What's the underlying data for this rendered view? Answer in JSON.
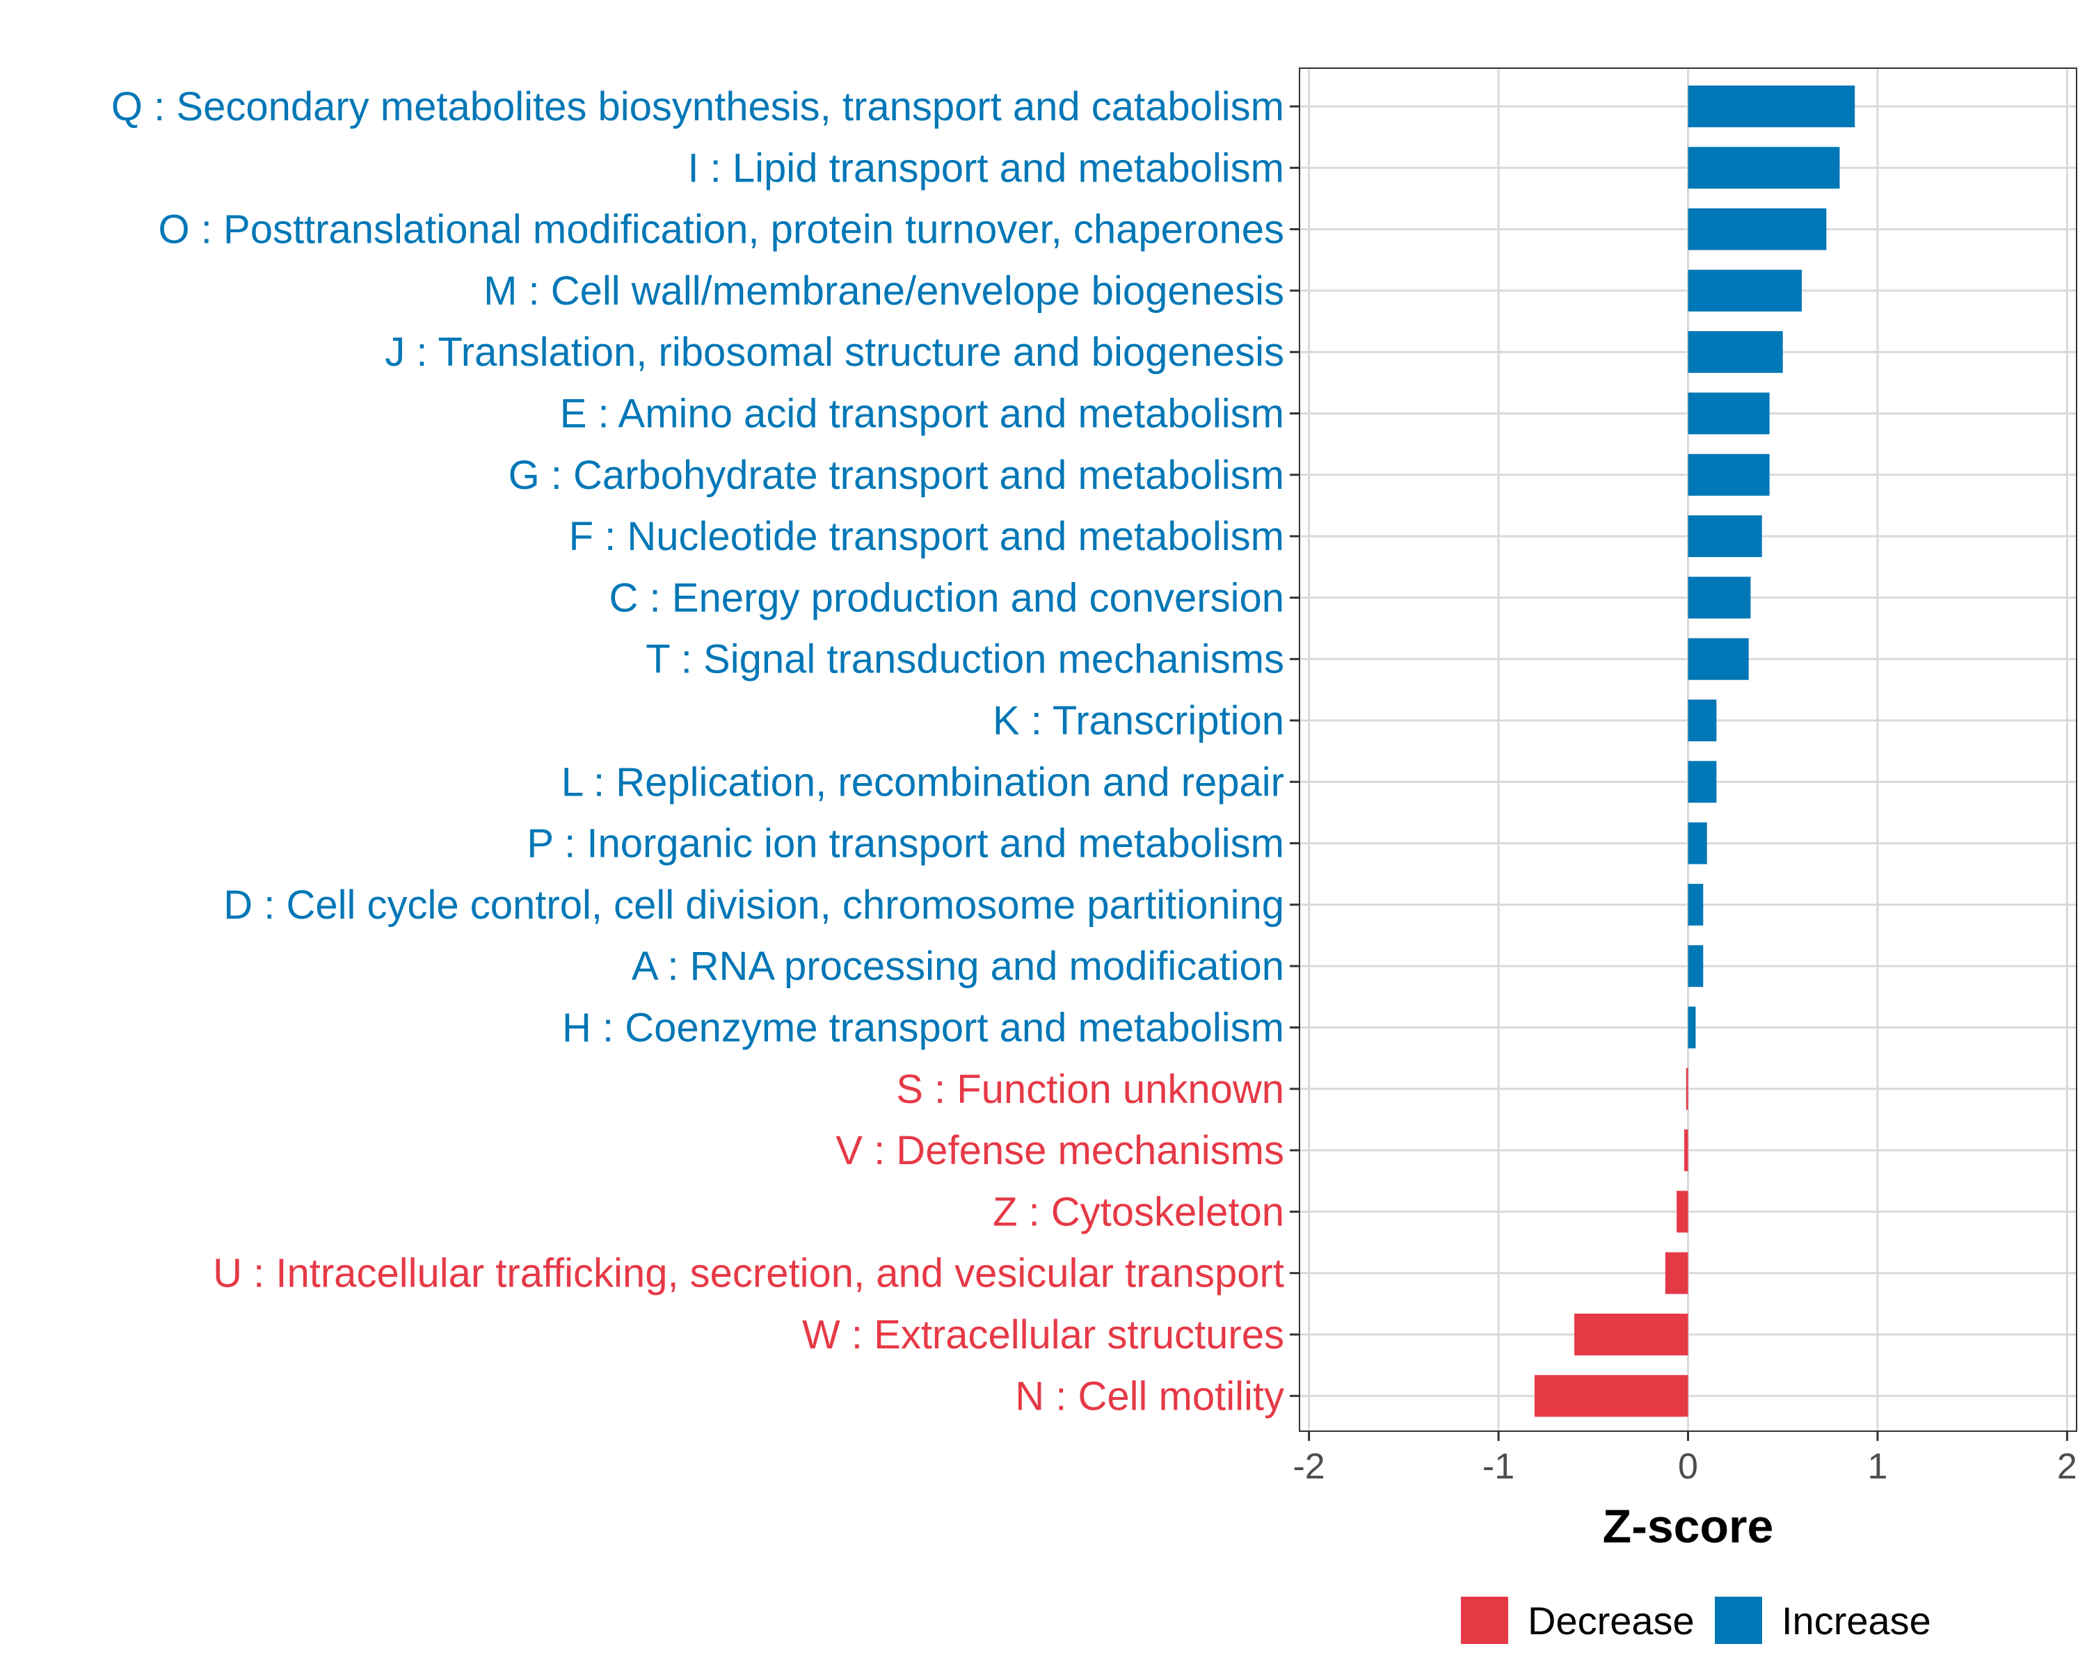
{
  "chart_data": {
    "type": "bar",
    "orientation": "horizontal",
    "categories": [
      "Q : Secondary metabolites biosynthesis, transport and catabolism",
      "I : Lipid transport and metabolism",
      "O : Posttranslational modification, protein turnover, chaperones",
      "M : Cell wall/membrane/envelope biogenesis",
      "J : Translation, ribosomal structure and biogenesis",
      "E : Amino acid transport and metabolism",
      "G : Carbohydrate transport and metabolism",
      "F : Nucleotide transport and metabolism",
      "C : Energy production and conversion",
      "T : Signal transduction mechanisms",
      "K : Transcription",
      "L : Replication, recombination and repair",
      "P : Inorganic ion transport and metabolism",
      "D : Cell cycle control, cell division, chromosome partitioning",
      "A : RNA processing and modification",
      "H : Coenzyme transport and metabolism",
      "S : Function unknown",
      "V : Defense mechanisms",
      "Z : Cytoskeleton",
      "U : Intracellular trafficking, secretion, and vesicular transport",
      "W : Extracellular structures",
      "N : Cell motility"
    ],
    "values": [
      0.88,
      0.8,
      0.73,
      0.6,
      0.5,
      0.43,
      0.43,
      0.39,
      0.33,
      0.32,
      0.15,
      0.15,
      0.1,
      0.08,
      0.08,
      0.04,
      -0.01,
      -0.02,
      -0.06,
      -0.12,
      -0.6,
      -0.81
    ],
    "groups": [
      "Increase",
      "Increase",
      "Increase",
      "Increase",
      "Increase",
      "Increase",
      "Increase",
      "Increase",
      "Increase",
      "Increase",
      "Increase",
      "Increase",
      "Increase",
      "Increase",
      "Increase",
      "Increase",
      "Decrease",
      "Decrease",
      "Decrease",
      "Decrease",
      "Decrease",
      "Decrease"
    ],
    "xlabel": "Z-score",
    "ylabel": "",
    "xlim": [
      -2.05,
      2.05
    ],
    "xticks": [
      -2,
      -1,
      0,
      1,
      2
    ],
    "xtick_labels": [
      "-2",
      "-1",
      "0",
      "1",
      "2"
    ],
    "grid": true,
    "legend": {
      "placement": "bottom",
      "entries": [
        {
          "name": "Decrease",
          "color": "#E63946"
        },
        {
          "name": "Increase",
          "color": "#0077B6"
        }
      ]
    }
  },
  "colors": {
    "increase": "#0077B6",
    "decrease": "#E63946",
    "grid": "#d9d9d9",
    "panel_border": "#333333",
    "tick_text": "#4d4d4d"
  }
}
